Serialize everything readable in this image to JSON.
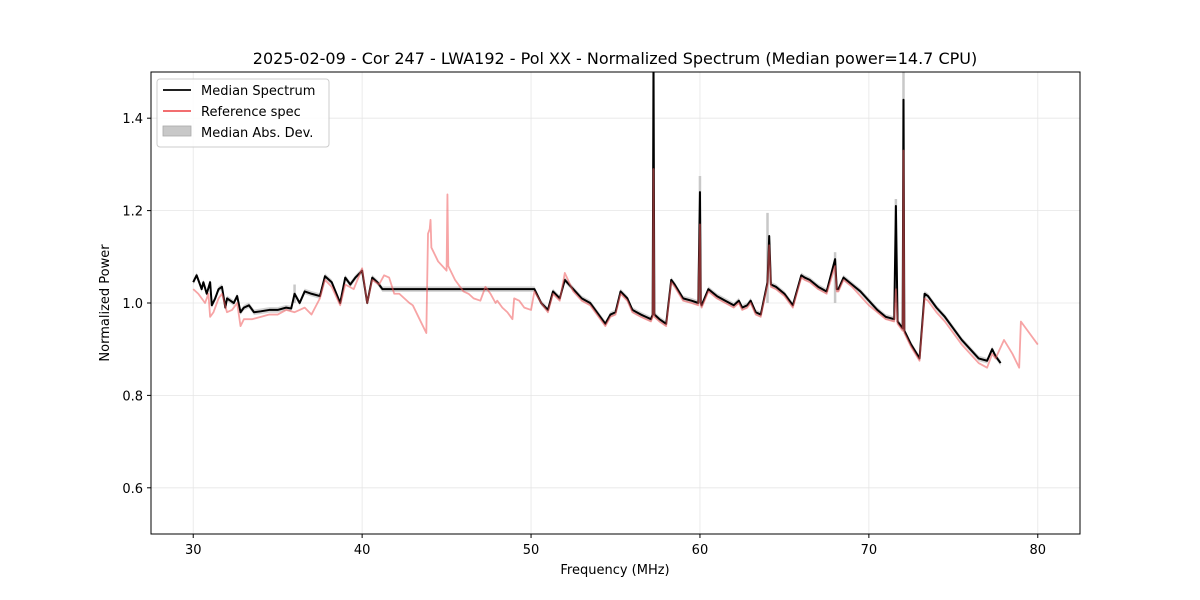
{
  "chart_data": {
    "type": "line",
    "title": "2025-02-09 - Cor 247 - LWA192 - Pol XX - Normalized Spectrum (Median power=14.7 CPU)",
    "xlabel": "Frequency (MHz)",
    "ylabel": "Normalized Power",
    "xlim": [
      27.5,
      82.5
    ],
    "ylim": [
      0.5,
      1.5
    ],
    "xticks": [
      30,
      40,
      50,
      60,
      70,
      80
    ],
    "yticks": [
      0.6,
      0.8,
      1.0,
      1.2,
      1.4
    ],
    "grid": true,
    "legend_position": "top-left",
    "legend": [
      "Median Spectrum",
      "Reference spec",
      "Median Abs. Dev."
    ],
    "colors": {
      "median": "#000000",
      "reference": "#f0595b",
      "mad": "#c8c8c8",
      "overlap": "#8b0000"
    },
    "series": [
      {
        "name": "Median Spectrum",
        "x": [
          30.0,
          30.2,
          30.3,
          30.5,
          30.6,
          30.8,
          31.0,
          31.1,
          31.3,
          31.5,
          31.7,
          31.9,
          32.0,
          32.2,
          32.4,
          32.6,
          32.8,
          33.0,
          33.3,
          33.6,
          34.0,
          34.5,
          35.0,
          35.5,
          35.8,
          36.0,
          36.3,
          36.6,
          37.0,
          37.5,
          37.8,
          38.2,
          38.7,
          39.0,
          39.3,
          39.6,
          40.0,
          40.3,
          40.6,
          40.9,
          41.2,
          50.2,
          50.6,
          51.0,
          51.3,
          51.7,
          52.0,
          52.5,
          53.0,
          53.5,
          54.0,
          54.4,
          54.7,
          55.0,
          55.3,
          55.7,
          56.0,
          56.5,
          56.8,
          57.1,
          57.2,
          57.25,
          57.3,
          57.6,
          58.0,
          58.3,
          58.5,
          59.0,
          59.5,
          59.9,
          60.0,
          60.05,
          60.1,
          60.5,
          61.0,
          61.5,
          62.0,
          62.3,
          62.5,
          62.8,
          63.0,
          63.3,
          63.6,
          64.0,
          64.1,
          64.2,
          64.5,
          65.0,
          65.5,
          66.0,
          66.2,
          66.5,
          67.0,
          67.5,
          68.0,
          68.1,
          68.2,
          68.5,
          69.0,
          69.5,
          70.0,
          70.5,
          71.0,
          71.5,
          71.6,
          71.7,
          72.0,
          72.05,
          72.1,
          72.5,
          73.0,
          73.3,
          73.5,
          74.0,
          74.5,
          75.0,
          75.5,
          76.0,
          76.5,
          77.0,
          77.3,
          77.5,
          77.8
        ],
        "y": [
          1.045,
          1.06,
          1.05,
          1.03,
          1.045,
          1.02,
          1.045,
          0.995,
          1.01,
          1.03,
          1.035,
          0.99,
          1.01,
          1.005,
          1.0,
          1.015,
          0.98,
          0.99,
          0.995,
          0.98,
          0.982,
          0.985,
          0.985,
          0.99,
          0.988,
          1.02,
          1.0,
          1.025,
          1.02,
          1.015,
          1.058,
          1.045,
          1.0,
          1.055,
          1.04,
          1.055,
          1.07,
          1.0,
          1.055,
          1.045,
          1.03,
          1.03,
          1.0,
          0.985,
          1.025,
          1.01,
          1.05,
          1.03,
          1.01,
          1.0,
          0.975,
          0.955,
          0.975,
          0.98,
          1.025,
          1.01,
          0.985,
          0.975,
          0.97,
          0.965,
          0.975,
          1.5,
          0.975,
          0.965,
          0.955,
          1.05,
          1.04,
          1.01,
          1.005,
          1.0,
          1.24,
          1.0,
          0.995,
          1.03,
          1.015,
          1.005,
          0.995,
          1.005,
          0.99,
          0.995,
          1.005,
          0.98,
          0.975,
          1.045,
          1.145,
          1.04,
          1.035,
          1.02,
          0.995,
          1.06,
          1.055,
          1.05,
          1.035,
          1.025,
          1.095,
          1.03,
          1.03,
          1.055,
          1.04,
          1.025,
          1.005,
          0.985,
          0.97,
          0.965,
          1.21,
          0.96,
          0.945,
          1.44,
          0.94,
          0.91,
          0.88,
          1.02,
          1.015,
          0.99,
          0.97,
          0.945,
          0.92,
          0.9,
          0.88,
          0.875,
          0.9,
          0.885,
          0.87
        ]
      },
      {
        "name": "Reference spec",
        "x": [
          30.0,
          30.3,
          30.5,
          30.7,
          30.9,
          31.0,
          31.2,
          31.5,
          31.7,
          32.0,
          32.3,
          32.6,
          32.8,
          33.0,
          33.5,
          34.0,
          34.5,
          35.0,
          35.5,
          36.0,
          36.3,
          36.6,
          37.0,
          37.5,
          37.8,
          38.2,
          38.7,
          39.0,
          39.5,
          40.0,
          40.3,
          40.6,
          41.0,
          41.3,
          41.6,
          41.9,
          42.2,
          42.5,
          42.8,
          43.0,
          43.4,
          43.8,
          43.9,
          44.0,
          44.05,
          44.1,
          44.5,
          45.0,
          45.05,
          45.1,
          45.5,
          46.0,
          46.3,
          46.6,
          47.0,
          47.3,
          47.6,
          47.9,
          48.0,
          48.3,
          48.6,
          48.9,
          49.0,
          49.3,
          49.6,
          50.0,
          50.2,
          50.6,
          51.0,
          51.3,
          51.7,
          52.0,
          52.5,
          53.0,
          53.5,
          54.0,
          54.4,
          54.7,
          55.0,
          55.3,
          55.7,
          56.0,
          56.5,
          56.8,
          57.1,
          57.2,
          57.25,
          57.3,
          57.6,
          58.0,
          58.3,
          58.5,
          59.0,
          59.5,
          59.9,
          60.0,
          60.05,
          60.1,
          60.5,
          61.0,
          61.5,
          62.0,
          62.3,
          62.5,
          62.8,
          63.0,
          63.3,
          63.6,
          64.0,
          64.1,
          64.2,
          64.5,
          65.0,
          65.5,
          66.0,
          66.2,
          66.5,
          67.0,
          67.5,
          68.0,
          68.1,
          68.2,
          68.5,
          69.0,
          69.5,
          70.0,
          70.5,
          71.0,
          71.5,
          71.6,
          71.7,
          72.0,
          72.05,
          72.1,
          72.5,
          73.0,
          73.3,
          73.5,
          74.0,
          74.5,
          75.0,
          75.5,
          76.0,
          76.5,
          77.0,
          77.3,
          77.5,
          78.0,
          78.5,
          78.9,
          79.0,
          79.5,
          80.0
        ],
        "y": [
          1.03,
          1.02,
          1.01,
          1.0,
          1.02,
          0.97,
          0.98,
          1.01,
          1.02,
          0.98,
          0.985,
          1.0,
          0.95,
          0.965,
          0.965,
          0.97,
          0.975,
          0.975,
          0.985,
          0.98,
          0.985,
          0.99,
          0.975,
          1.01,
          1.05,
          1.035,
          0.995,
          1.04,
          1.03,
          1.075,
          1.0,
          1.05,
          1.04,
          1.06,
          1.055,
          1.02,
          1.02,
          1.01,
          1.0,
          0.995,
          0.965,
          0.935,
          1.15,
          1.16,
          1.18,
          1.12,
          1.09,
          1.07,
          1.235,
          1.08,
          1.05,
          1.025,
          1.02,
          1.01,
          1.005,
          1.035,
          1.02,
          1.0,
          1.005,
          0.99,
          0.98,
          0.965,
          1.01,
          1.005,
          0.99,
          0.985,
          1.025,
          1.0,
          0.98,
          1.02,
          1.005,
          1.065,
          1.025,
          1.005,
          0.995,
          0.97,
          0.95,
          0.97,
          0.975,
          1.02,
          1.005,
          0.98,
          0.97,
          0.965,
          0.96,
          0.97,
          1.29,
          0.97,
          0.96,
          0.95,
          1.045,
          1.035,
          1.005,
          1.0,
          0.995,
          1.17,
          0.995,
          0.99,
          1.025,
          1.01,
          1.0,
          0.99,
          1.0,
          0.985,
          0.99,
          1.0,
          0.975,
          0.97,
          1.04,
          1.125,
          1.035,
          1.03,
          1.015,
          0.99,
          1.055,
          1.05,
          1.045,
          1.03,
          1.02,
          1.08,
          1.025,
          1.025,
          1.05,
          1.035,
          1.015,
          0.995,
          0.98,
          0.965,
          0.96,
          1.03,
          0.955,
          0.94,
          1.33,
          0.935,
          0.905,
          0.875,
          1.01,
          1.005,
          0.98,
          0.96,
          0.935,
          0.91,
          0.89,
          0.87,
          0.86,
          0.89,
          0.88,
          0.92,
          0.89,
          0.86,
          0.96,
          0.935,
          0.91
        ]
      },
      {
        "name": "Median Abs. Dev.",
        "spikes": [
          {
            "x": 57.25,
            "y": 1.5
          },
          {
            "x": 60.0,
            "y": 1.275
          },
          {
            "x": 64.0,
            "y": 1.195
          },
          {
            "x": 68.0,
            "y": 1.11
          },
          {
            "x": 71.6,
            "y": 1.225
          },
          {
            "x": 72.05,
            "y": 1.5
          },
          {
            "x": 36.0,
            "y": 1.04
          }
        ],
        "band_width": 0.006
      }
    ]
  }
}
